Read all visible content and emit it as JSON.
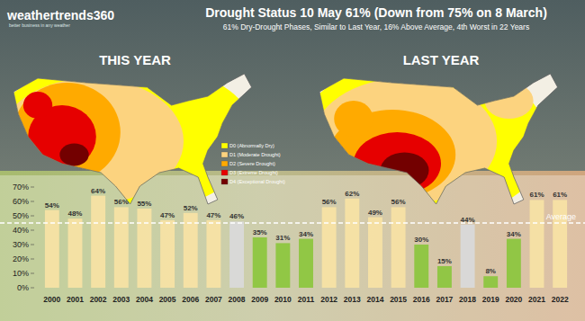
{
  "header": {
    "logo": "weathertrends360",
    "logo_tagline": "better business in any weather"
  },
  "maps": [
    {
      "label": "THIS YEAR"
    },
    {
      "label": "LAST YEAR"
    }
  ],
  "map_legend": [
    {
      "label": "D0 (Abnormally Dry)",
      "color": "#ffff00"
    },
    {
      "label": "D1 (Moderate Drought)",
      "color": "#fcd37f"
    },
    {
      "label": "D2 (Severe Drought)",
      "color": "#ffaa00"
    },
    {
      "label": "D3 (Extreme Drought)",
      "color": "#e60000"
    },
    {
      "label": "D4 (Exceptional Drought)",
      "color": "#730000"
    }
  ],
  "chart_data": {
    "type": "bar",
    "title": "Drought Status 10 May 61% (Down from 75% on 8 March)",
    "subtitle": "61% Dry-Drought Phases, Similar to Last Year, 16% Above Average, 4th Worst in 22 Years",
    "categories": [
      "2000",
      "2001",
      "2002",
      "2003",
      "2004",
      "2005",
      "2006",
      "2007",
      "2008",
      "2009",
      "2010",
      "2011",
      "2012",
      "2013",
      "2014",
      "2015",
      "2016",
      "2017",
      "2018",
      "2019",
      "2020",
      "2021",
      "2022"
    ],
    "values": [
      54,
      48,
      64,
      56,
      55,
      47,
      52,
      47,
      46,
      35,
      31,
      34,
      56,
      62,
      49,
      56,
      30,
      15,
      44,
      8,
      34,
      61,
      61
    ],
    "value_labels": [
      "54%",
      "48%",
      "64%",
      "56%",
      "55%",
      "47%",
      "52%",
      "47%",
      "46%",
      "35%",
      "31%",
      "34%",
      "56%",
      "62%",
      "49%",
      "56%",
      "30%",
      "15%",
      "44%",
      "8%",
      "34%",
      "61%",
      "61%"
    ],
    "colors": [
      "#f7e1a4",
      "#f7e1a4",
      "#f7e1a4",
      "#f7e1a4",
      "#f7e1a4",
      "#f7e1a4",
      "#f7e1a4",
      "#f7e1a4",
      "#d9d9d9",
      "#8dc63f",
      "#8dc63f",
      "#8dc63f",
      "#f7e1a4",
      "#f7e1a4",
      "#f7e1a4",
      "#f7e1a4",
      "#8dc63f",
      "#8dc63f",
      "#d9d9d9",
      "#8dc63f",
      "#8dc63f",
      "#f7e1a4",
      "#f7e1a4"
    ],
    "ylim": [
      0,
      70
    ],
    "yticks": [
      {
        "value": 0,
        "label": "0%"
      },
      {
        "value": 10,
        "label": "10%"
      },
      {
        "value": 20,
        "label": "20%"
      },
      {
        "value": 30,
        "label": "30%"
      },
      {
        "value": 40,
        "label": "40%"
      },
      {
        "value": 50,
        "label": "50%"
      },
      {
        "value": 60,
        "label": "60%"
      },
      {
        "value": 70,
        "label": "70%"
      }
    ],
    "grid": false,
    "data_labels": true,
    "average": {
      "label": "Average",
      "value": 45
    }
  }
}
